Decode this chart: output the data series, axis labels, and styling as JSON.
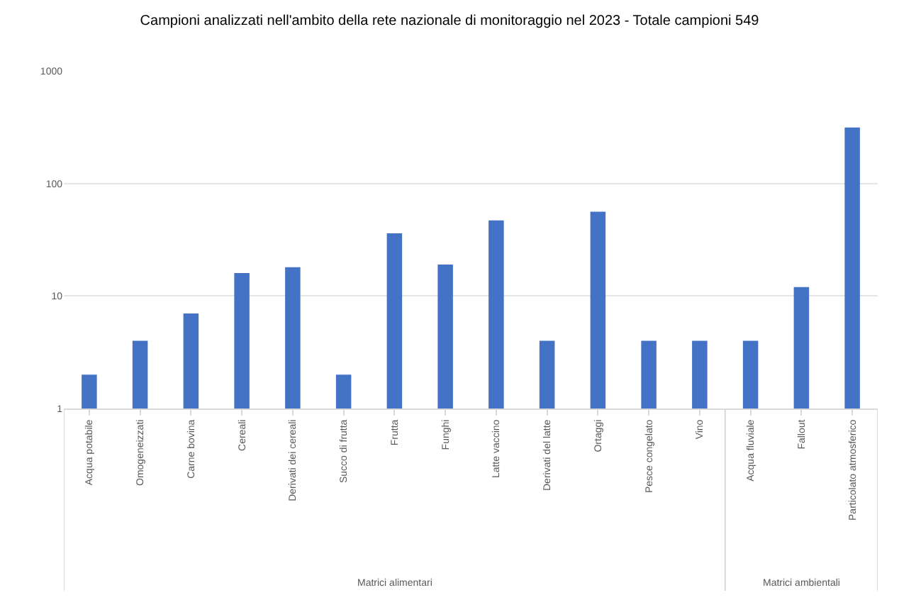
{
  "chart_data": {
    "type": "bar",
    "title": "Campioni analizzati nell'ambito della rete nazionale di monitoraggio nel 2023 - Totale campioni 549",
    "categories": [
      "Acqua potabile",
      "Omogeneizzati",
      "Carne bovina",
      "Cereali",
      "Derivati dei cereali",
      "Succo di frutta",
      "Frutta",
      "Funghi",
      "Latte vaccino",
      "Derivati del latte",
      "Ortaggi",
      "Pesce congelato",
      "Vino",
      "Acqua fluviale",
      "Fallout",
      "Particolato atmosferico"
    ],
    "values": [
      2,
      4,
      7,
      16,
      18,
      2,
      36,
      19,
      47,
      4,
      56,
      4,
      4,
      4,
      12,
      314
    ],
    "color": "#4472c4",
    "log": true,
    "ylim": [
      1,
      1000
    ],
    "yticks": [
      1,
      10,
      100,
      1000
    ],
    "grid": "y",
    "annotations": [
      "Matrici alimentari",
      "Matrici ambientali"
    ]
  }
}
